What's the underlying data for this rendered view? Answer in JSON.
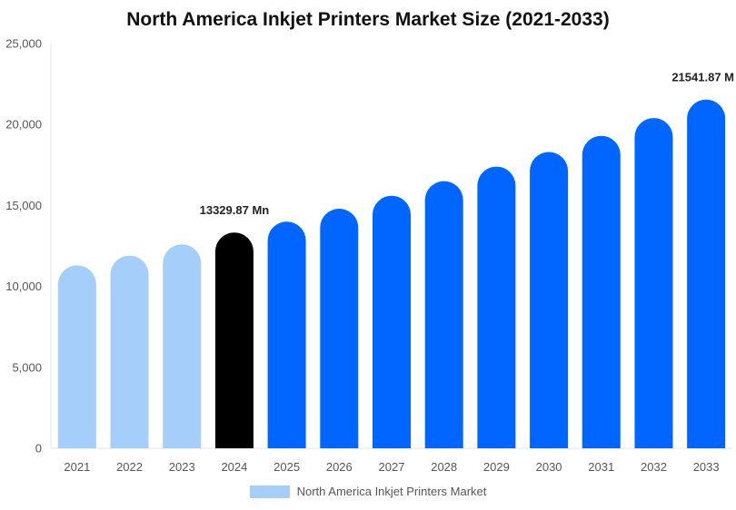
{
  "chart_data": {
    "type": "bar",
    "title": "North America Inkjet Printers Market Size (2021-2033)",
    "xlabel": "",
    "ylabel": "",
    "ylim": [
      0,
      25000
    ],
    "yticks": [
      "0",
      "5,000",
      "10,000",
      "15,000",
      "20,000",
      "25,000"
    ],
    "ytick_values": [
      0,
      5000,
      10000,
      15000,
      20000,
      25000
    ],
    "categories": [
      "2021",
      "2022",
      "2023",
      "2024",
      "2025",
      "2026",
      "2027",
      "2028",
      "2029",
      "2030",
      "2031",
      "2032",
      "2033"
    ],
    "series": [
      {
        "name": "North America Inkjet Printers Market",
        "values": [
          11300,
          11900,
          12600,
          13329.87,
          14000,
          14800,
          15600,
          16500,
          17400,
          18300,
          19300,
          20400,
          21541.87
        ]
      }
    ],
    "bar_colors": [
      "#a6cefb",
      "#a6cefb",
      "#a6cefb",
      "#000000",
      "#0066ff",
      "#0066ff",
      "#0066ff",
      "#0066ff",
      "#0066ff",
      "#0066ff",
      "#0066ff",
      "#0066ff",
      "#0066ff"
    ],
    "legend_color": "#a6cefb",
    "annotations": [
      {
        "index": 3,
        "text": "13329.87 Mn"
      },
      {
        "index": 12,
        "text": "21541.87 M"
      }
    ],
    "grid": false,
    "legend_position": "bottom"
  }
}
